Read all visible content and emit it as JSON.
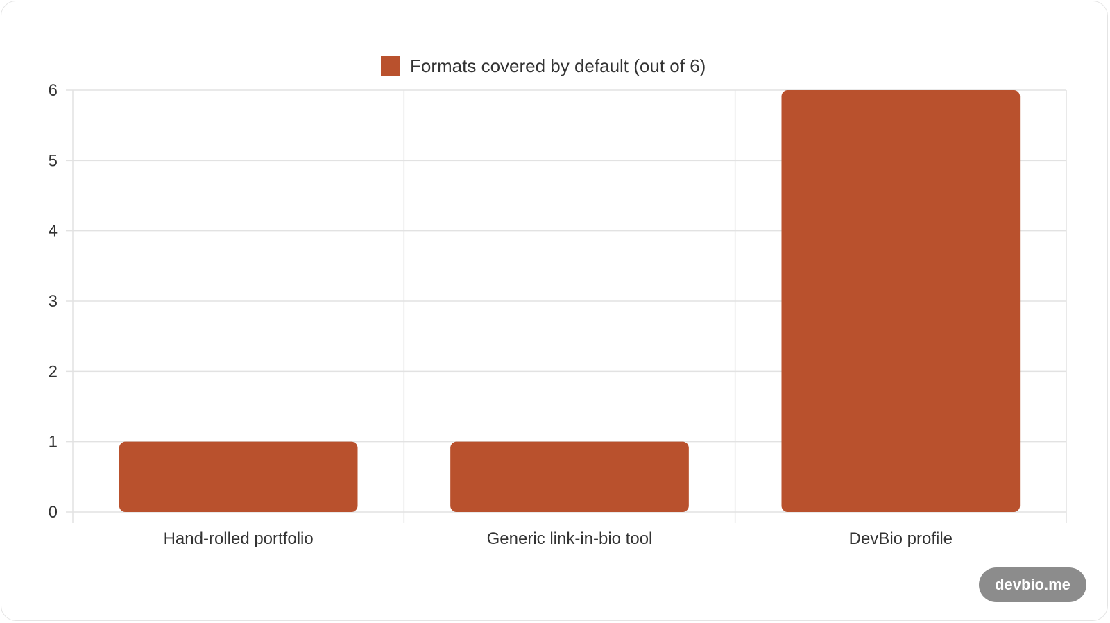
{
  "chart_data": {
    "type": "bar",
    "categories": [
      "Hand-rolled portfolio",
      "Generic link-in-bio tool",
      "DevBio profile"
    ],
    "series": [
      {
        "name": "Formats covered by default (out of 6)",
        "values": [
          1,
          1,
          6
        ],
        "color": "#b9512d"
      }
    ],
    "ylim": [
      0,
      6
    ],
    "yticks": [
      "0",
      "1",
      "2",
      "3",
      "4",
      "5",
      "6"
    ],
    "grid": true,
    "legend_position": "top-center"
  },
  "badge": {
    "label": "devbio.me"
  },
  "colors": {
    "bar": "#b9512d",
    "grid": "#e2e2e2",
    "badge_bg": "#8c8c8c"
  }
}
